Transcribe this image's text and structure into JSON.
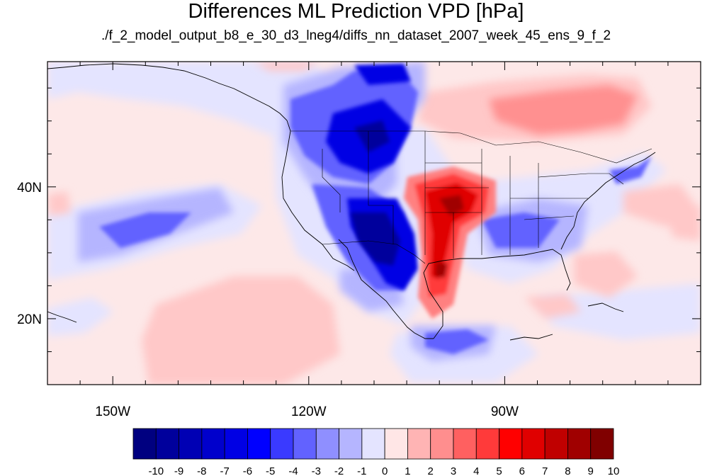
{
  "title": "Differences ML Prediction VPD [hPa]",
  "subtitle": "./f_2_model_output_b8_e_30_d3_lneg4/diffs_nn_dataset_2007_week_45_ens_9_f_2",
  "map": {
    "lon_range": [
      -160,
      -60
    ],
    "lat_range": [
      10,
      59
    ],
    "lon_labels": [
      {
        "lon": -150,
        "text": "150W"
      },
      {
        "lon": -120,
        "text": "120W"
      },
      {
        "lon": -90,
        "text": "90W"
      }
    ],
    "lat_labels": [
      {
        "lat": 40,
        "text": "40N"
      },
      {
        "lat": 20,
        "text": "20N"
      }
    ]
  },
  "colorbar": {
    "labels": [
      "-10",
      "-9",
      "-8",
      "-7",
      "-6",
      "-5",
      "-4",
      "-3",
      "-2",
      "-1",
      "0",
      "1",
      "2",
      "3",
      "4",
      "5",
      "6",
      "7",
      "8",
      "9",
      "10"
    ],
    "colors": [
      "#000080",
      "#00009c",
      "#0000b4",
      "#0000cc",
      "#0000e4",
      "#0000ff",
      "#3a3aff",
      "#6262ff",
      "#8f8fff",
      "#b5b5ff",
      "#e4e4ff",
      "#ffe6e6",
      "#ffb4b4",
      "#ff8e8e",
      "#ff6060",
      "#ff3a3a",
      "#ff0000",
      "#e00000",
      "#c00000",
      "#a00000",
      "#800000"
    ]
  }
}
